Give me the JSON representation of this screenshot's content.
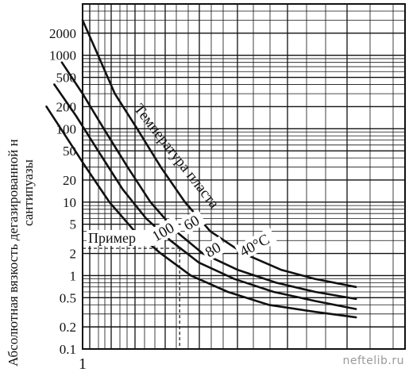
{
  "chart_data": {
    "type": "line",
    "ylabel_line1": "Абсолютная вязкость дегазированной н",
    "ylabel_line2": "сантипуазы",
    "y_scale": "log",
    "ylim": [
      0.1,
      5000
    ],
    "y_ticks": [
      {
        "value": 2000,
        "label": "2000"
      },
      {
        "value": 1000,
        "label": "1000"
      },
      {
        "value": 500,
        "label": "500"
      },
      {
        "value": 200,
        "label": "200"
      },
      {
        "value": 100,
        "label": "100"
      },
      {
        "value": 50,
        "label": "50"
      },
      {
        "value": 20,
        "label": "20"
      },
      {
        "value": 10,
        "label": "10"
      },
      {
        "value": 5,
        "label": "5"
      },
      {
        "value": 2,
        "label": "2"
      },
      {
        "value": 1,
        "label": "1"
      },
      {
        "value": 0.5,
        "label": "0.5"
      },
      {
        "value": 0.2,
        "label": "0.2"
      },
      {
        "value": 0.1,
        "label": "0.1"
      }
    ],
    "x_ticks": [
      {
        "value": 1,
        "label": "1"
      }
    ],
    "annotation_temperature": "Температура пласта",
    "series": [
      {
        "label": "40°С",
        "x": [
          1.0,
          1.1,
          1.22,
          1.4,
          1.62,
          1.88,
          2.2,
          2.7,
          3.4,
          4.2,
          5.4
        ],
        "y": [
          3000,
          1000,
          300,
          100,
          30,
          10,
          4,
          2,
          1.2,
          0.9,
          0.7
        ]
      },
      {
        "label": "60",
        "x": [
          0.88,
          1.0,
          1.14,
          1.32,
          1.52,
          1.78,
          2.1,
          2.6,
          3.3,
          4.2,
          5.4
        ],
        "y": [
          800,
          300,
          100,
          30,
          10,
          4,
          2,
          1.2,
          0.8,
          0.6,
          0.48
        ]
      },
      {
        "label": "80",
        "x": [
          0.84,
          0.96,
          1.1,
          1.28,
          1.48,
          1.72,
          2.05,
          2.55,
          3.25,
          4.2,
          5.4
        ],
        "y": [
          400,
          150,
          50,
          15,
          6,
          3,
          1.5,
          0.9,
          0.6,
          0.45,
          0.35
        ]
      },
      {
        "label": "100",
        "x": [
          0.8,
          0.9,
          1.02,
          1.18,
          1.38,
          1.62,
          1.95,
          2.45,
          3.15,
          4.2,
          5.4
        ],
        "y": [
          200,
          80,
          30,
          10,
          4,
          2,
          1.0,
          0.6,
          0.4,
          0.32,
          0.27
        ]
      }
    ],
    "example": {
      "label": "Пример",
      "y": 2.35,
      "x": 1.82
    },
    "grid": true
  },
  "watermark": "neftelib.ru"
}
